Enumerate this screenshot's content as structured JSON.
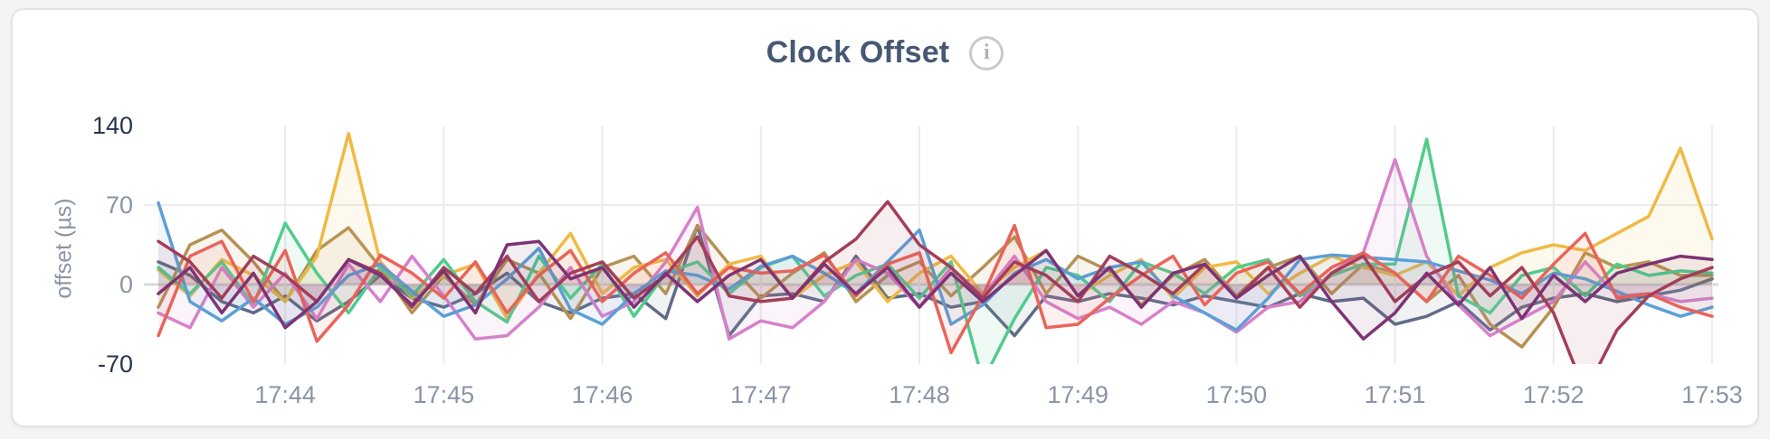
{
  "header": {
    "title": "Clock Offset",
    "info_glyph": "i"
  },
  "colors": {
    "page_bg": "#f4f4f5",
    "card_bg": "#ffffff",
    "card_border": "#e3e3e5",
    "title": "#475872",
    "tick": "#8a94a6",
    "tick_emphasis": "#26344e",
    "grid": "#ececee",
    "zero_line": "#d8d8da",
    "info_border": "#c9c9cc",
    "info_glyph": "#b3b3b6"
  },
  "chart_data": {
    "type": "line",
    "title": "Clock Offset",
    "xlabel": "",
    "ylabel": "offset (µs)",
    "ylim": [
      -70,
      167
    ],
    "y_ticks": [
      140,
      70,
      0,
      -70
    ],
    "y_tick_labels": [
      "140",
      "70",
      "0",
      "-70"
    ],
    "x_tick_labels": [
      "17:44",
      "17:45",
      "17:46",
      "17:47",
      "17:48",
      "17:49",
      "17:50",
      "17:51",
      "17:52",
      "17:53"
    ],
    "x_tick_indices": [
      4,
      9,
      14,
      19,
      24,
      29,
      34,
      39,
      44,
      49
    ],
    "x_start": "17:43:12",
    "x_end": "17:53:00",
    "sample_interval_seconds": 12,
    "grid": true,
    "legend": "none",
    "fill_to_zero": true,
    "series": [
      {
        "name": "slate",
        "color": "#5F6C87",
        "values": [
          20,
          8,
          -15,
          -25,
          -10,
          -32,
          -15,
          8,
          -12,
          -20,
          -8,
          10,
          -15,
          -25,
          -12,
          -8,
          -30,
          52,
          -45,
          -10,
          -8,
          -15,
          25,
          -12,
          -8,
          -20,
          -15,
          -45,
          -10,
          -15,
          -8,
          -12,
          -18,
          -10,
          -15,
          -20,
          -8,
          -15,
          -12,
          -35,
          -28,
          -15,
          -40,
          -20,
          -12,
          -8,
          -15,
          -10,
          -5,
          5
        ]
      },
      {
        "name": "khaki",
        "color": "#B59153",
        "values": [
          -20,
          35,
          48,
          20,
          -15,
          30,
          50,
          15,
          -25,
          8,
          -18,
          22,
          10,
          -30,
          15,
          25,
          -8,
          52,
          18,
          -12,
          10,
          28,
          -15,
          8,
          20,
          -10,
          15,
          42,
          -8,
          25,
          12,
          -18,
          8,
          22,
          -10,
          15,
          25,
          -8,
          18,
          10,
          -15,
          8,
          -35,
          -55,
          -20,
          28,
          15,
          20,
          8,
          8
        ]
      },
      {
        "name": "gold",
        "color": "#EFBA44",
        "values": [
          13,
          -10,
          22,
          8,
          -15,
          25,
          133,
          20,
          -12,
          8,
          18,
          -30,
          10,
          45,
          -8,
          15,
          22,
          -10,
          18,
          25,
          -12,
          8,
          20,
          -15,
          10,
          25,
          -8,
          15,
          30,
          -10,
          8,
          22,
          -12,
          15,
          20,
          -8,
          10,
          25,
          15,
          8,
          20,
          -10,
          15,
          28,
          35,
          30,
          45,
          60,
          120,
          40
        ]
      },
      {
        "name": "green",
        "color": "#52CB8C",
        "values": [
          15,
          -8,
          20,
          -18,
          54,
          10,
          -25,
          15,
          -10,
          22,
          -15,
          -33,
          25,
          -12,
          18,
          -28,
          10,
          20,
          -8,
          15,
          25,
          -10,
          8,
          18,
          -12,
          20,
          -85,
          -30,
          15,
          8,
          -15,
          20,
          10,
          -8,
          15,
          22,
          -10,
          8,
          18,
          18,
          128,
          -10,
          -25,
          8,
          15,
          -10,
          18,
          8,
          12,
          10
        ]
      },
      {
        "name": "pink",
        "color": "#D780CB",
        "values": [
          -25,
          -38,
          15,
          -20,
          10,
          -30,
          18,
          -15,
          25,
          -10,
          -48,
          -45,
          -20,
          15,
          -28,
          -15,
          20,
          68,
          -48,
          -32,
          -38,
          -15,
          22,
          10,
          -20,
          15,
          -10,
          25,
          -15,
          -30,
          -20,
          -35,
          -15,
          -25,
          -42,
          -20,
          -15,
          10,
          28,
          110,
          25,
          -18,
          -45,
          -30,
          -15,
          20,
          -10,
          -8,
          -15,
          -12
        ]
      },
      {
        "name": "blue",
        "color": "#5C9FD6",
        "values": [
          72,
          -15,
          -32,
          -12,
          -35,
          -20,
          8,
          18,
          -6,
          -28,
          -18,
          5,
          32,
          -22,
          -35,
          -8,
          12,
          8,
          -4,
          16,
          25,
          10,
          -8,
          20,
          48,
          -35,
          -18,
          10,
          22,
          5,
          15,
          20,
          -10,
          -25,
          -40,
          -12,
          22,
          26,
          24,
          22,
          20,
          12,
          4,
          -8,
          10,
          5,
          -6,
          -18,
          -28,
          -20
        ]
      },
      {
        "name": "red",
        "color": "#E96459",
        "values": [
          -45,
          25,
          38,
          -15,
          30,
          -50,
          -18,
          26,
          10,
          -12,
          20,
          -25,
          8,
          30,
          -15,
          10,
          28,
          -8,
          15,
          10,
          12,
          26,
          -10,
          18,
          28,
          -60,
          -10,
          52,
          -38,
          -35,
          -12,
          8,
          25,
          -18,
          10,
          20,
          -8,
          15,
          28,
          10,
          -15,
          25,
          8,
          -12,
          18,
          45,
          -12,
          -8,
          -20,
          -28
        ]
      },
      {
        "name": "maroon",
        "color": "#A43E58",
        "values": [
          38,
          20,
          -12,
          25,
          8,
          -15,
          22,
          10,
          -20,
          15,
          -8,
          25,
          -15,
          10,
          20,
          -12,
          8,
          42,
          -10,
          -15,
          -12,
          20,
          40,
          73,
          35,
          15,
          -12,
          20,
          8,
          -15,
          25,
          10,
          -8,
          18,
          -12,
          15,
          -20,
          10,
          25,
          -15,
          8,
          20,
          -10,
          15,
          -25,
          -95,
          -40,
          -10,
          5,
          15
        ]
      },
      {
        "name": "purple",
        "color": "#7E3374",
        "values": [
          -8,
          15,
          -25,
          10,
          -38,
          -15,
          22,
          8,
          -18,
          12,
          -25,
          35,
          38,
          5,
          15,
          -20,
          10,
          -15,
          8,
          22,
          -12,
          18,
          -8,
          15,
          -20,
          10,
          -15,
          8,
          30,
          -10,
          15,
          -20,
          10,
          18,
          -12,
          8,
          25,
          -15,
          -48,
          -25,
          10,
          -18,
          15,
          -30,
          8,
          -15,
          10,
          18,
          25,
          22
        ]
      }
    ]
  }
}
